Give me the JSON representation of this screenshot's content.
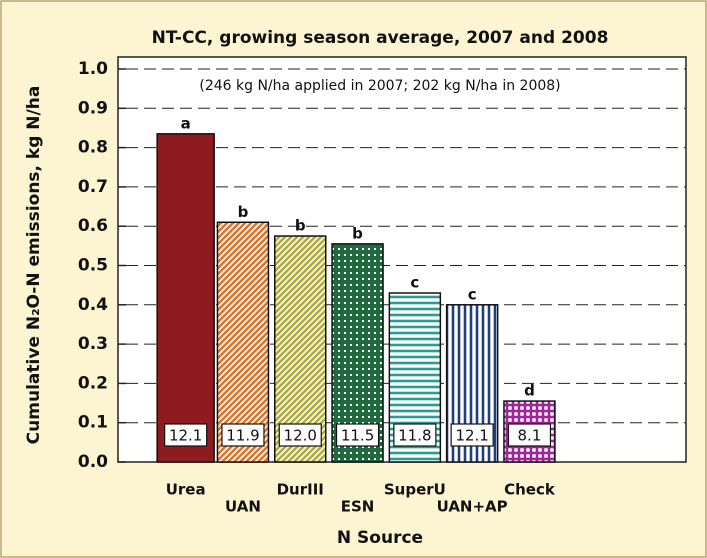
{
  "chart_data": {
    "type": "bar",
    "title": "NT-CC, growing season average, 2007 and 2008",
    "annotation": "(246 kg N/ha applied in 2007; 202 kg N/ha in 2008)",
    "x_label": "N Source",
    "y_label": "Cumulative N₂O-N emissions, kg N/ha",
    "categories": [
      "Urea",
      "UAN",
      "DurIII",
      "ESN",
      "SuperU",
      "UAN+AP",
      "Check"
    ],
    "values": [
      0.835,
      0.61,
      0.575,
      0.555,
      0.43,
      0.4,
      0.155
    ],
    "letters": [
      "a",
      "b",
      "b",
      "b",
      "c",
      "c",
      "d"
    ],
    "box_labels": [
      "12.1",
      "11.9",
      "12.0",
      "11.5",
      "11.8",
      "12.1",
      "8.1"
    ],
    "colors": [
      "#8e1b1e",
      "#e0742a",
      "#b3ab3a",
      "#1f6b3f",
      "#2a9a94",
      "#1f3f7a",
      "#a0259a"
    ],
    "patterns": [
      "solid",
      "diagonal",
      "crosshatch",
      "dots",
      "horizontal",
      "vertical",
      "grid"
    ],
    "ylim": [
      0,
      1
    ],
    "yticks": [
      {
        "value": 0,
        "label": "0.0"
      },
      0.1,
      0.2,
      0.3,
      0.4,
      0.5,
      0.6,
      0.7,
      0.8,
      0.9,
      {
        "value": 1,
        "label": "1.0"
      }
    ],
    "grid": true
  }
}
